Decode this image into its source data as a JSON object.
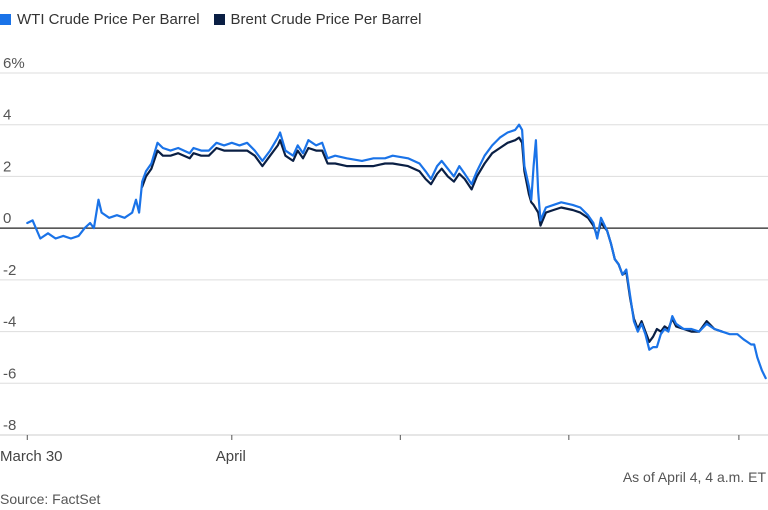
{
  "chart_data": {
    "type": "line",
    "ylim": [
      -8,
      6
    ],
    "yticks": [
      6,
      4,
      2,
      0,
      -2,
      -4,
      -6,
      -8
    ],
    "ytick_labels": [
      "6%",
      "4",
      "2",
      "0",
      "-2",
      "-4",
      "-6",
      "-8"
    ],
    "xlim": [
      0,
      100
    ],
    "xticks": [
      {
        "x": 3.3,
        "label": "March 30"
      },
      {
        "x": 30.0,
        "label": "April"
      },
      {
        "x": 52.0,
        "label": ""
      },
      {
        "x": 74.0,
        "label": ""
      },
      {
        "x": 96.2,
        "label": ""
      }
    ],
    "grid": true,
    "legend_position": "top-left",
    "series": [
      {
        "name": "WTI Crude Price Per Barrel",
        "color": "#1a73e8",
        "points": [
          [
            3.3,
            0.2
          ],
          [
            4.0,
            0.3
          ],
          [
            5.0,
            -0.4
          ],
          [
            6.0,
            -0.2
          ],
          [
            7.0,
            -0.4
          ],
          [
            8.0,
            -0.3
          ],
          [
            9.0,
            -0.4
          ],
          [
            10.0,
            -0.3
          ],
          [
            10.8,
            0.0
          ],
          [
            11.5,
            0.2
          ],
          [
            12.0,
            0.0
          ],
          [
            12.6,
            1.1
          ],
          [
            13.0,
            0.6
          ],
          [
            14.0,
            0.4
          ],
          [
            15.0,
            0.5
          ],
          [
            16.0,
            0.4
          ],
          [
            17.0,
            0.6
          ],
          [
            17.5,
            1.1
          ],
          [
            17.9,
            0.6
          ],
          [
            18.3,
            1.8
          ],
          [
            18.8,
            2.2
          ],
          [
            19.5,
            2.5
          ],
          [
            20.3,
            3.3
          ],
          [
            21.0,
            3.1
          ],
          [
            22.0,
            3.0
          ],
          [
            23.0,
            3.1
          ],
          [
            24.5,
            2.9
          ],
          [
            25.0,
            3.1
          ],
          [
            26.0,
            3.0
          ],
          [
            27.0,
            3.0
          ],
          [
            28.0,
            3.3
          ],
          [
            29.0,
            3.2
          ],
          [
            30.0,
            3.3
          ],
          [
            31.0,
            3.2
          ],
          [
            32.0,
            3.3
          ],
          [
            33.0,
            3.0
          ],
          [
            34.0,
            2.6
          ],
          [
            35.0,
            3.0
          ],
          [
            36.0,
            3.5
          ],
          [
            36.3,
            3.7
          ],
          [
            37.0,
            3.0
          ],
          [
            38.0,
            2.8
          ],
          [
            38.6,
            3.2
          ],
          [
            39.3,
            2.9
          ],
          [
            40.0,
            3.4
          ],
          [
            41.0,
            3.2
          ],
          [
            41.8,
            3.3
          ],
          [
            42.5,
            2.7
          ],
          [
            43.5,
            2.8
          ],
          [
            45.0,
            2.7
          ],
          [
            47.0,
            2.6
          ],
          [
            48.5,
            2.7
          ],
          [
            50.0,
            2.7
          ],
          [
            51.0,
            2.8
          ],
          [
            53.0,
            2.7
          ],
          [
            54.5,
            2.5
          ],
          [
            55.3,
            2.2
          ],
          [
            56.0,
            1.9
          ],
          [
            56.8,
            2.4
          ],
          [
            57.4,
            2.6
          ],
          [
            58.2,
            2.3
          ],
          [
            59.0,
            2.0
          ],
          [
            59.7,
            2.4
          ],
          [
            60.4,
            2.1
          ],
          [
            61.3,
            1.7
          ],
          [
            62.0,
            2.2
          ],
          [
            63.0,
            2.8
          ],
          [
            64.0,
            3.2
          ],
          [
            65.0,
            3.5
          ],
          [
            66.0,
            3.7
          ],
          [
            67.0,
            3.8
          ],
          [
            67.5,
            4.0
          ],
          [
            67.9,
            3.8
          ],
          [
            68.2,
            2.4
          ],
          [
            68.8,
            1.6
          ],
          [
            69.1,
            1.1
          ],
          [
            69.4,
            2.4
          ],
          [
            69.7,
            3.4
          ],
          [
            70.0,
            1.4
          ],
          [
            70.3,
            0.3
          ],
          [
            71.0,
            0.8
          ],
          [
            72.0,
            0.9
          ],
          [
            73.0,
            1.0
          ],
          [
            74.5,
            0.9
          ],
          [
            75.5,
            0.8
          ],
          [
            76.5,
            0.5
          ],
          [
            77.2,
            0.2
          ],
          [
            77.7,
            -0.4
          ],
          [
            78.2,
            0.4
          ],
          [
            79.0,
            -0.1
          ],
          [
            79.5,
            -0.6
          ],
          [
            80.0,
            -1.2
          ],
          [
            80.5,
            -1.4
          ],
          [
            81.0,
            -1.8
          ],
          [
            81.5,
            -1.6
          ],
          [
            82.0,
            -2.6
          ],
          [
            82.5,
            -3.6
          ],
          [
            83.0,
            -4.0
          ],
          [
            83.5,
            -3.7
          ],
          [
            84.0,
            -4.1
          ],
          [
            84.5,
            -4.7
          ],
          [
            85.0,
            -4.6
          ],
          [
            85.5,
            -4.6
          ],
          [
            86.0,
            -4.1
          ],
          [
            86.5,
            -3.9
          ],
          [
            87.0,
            -4.0
          ],
          [
            87.5,
            -3.4
          ],
          [
            88.0,
            -3.7
          ],
          [
            89.0,
            -3.9
          ],
          [
            90.0,
            -3.9
          ],
          [
            91.0,
            -4.0
          ],
          [
            92.0,
            -3.7
          ],
          [
            93.0,
            -3.9
          ],
          [
            94.0,
            -4.0
          ],
          [
            95.0,
            -4.1
          ],
          [
            96.0,
            -4.1
          ],
          [
            96.8,
            -4.3
          ],
          [
            97.3,
            -4.4
          ],
          [
            97.8,
            -4.5
          ],
          [
            98.2,
            -4.5
          ],
          [
            98.6,
            -5.0
          ],
          [
            99.2,
            -5.5
          ],
          [
            99.7,
            -5.8
          ]
        ]
      },
      {
        "name": "Brent Crude Price Per Barrel",
        "color": "#0a1f44",
        "points": [
          [
            18.3,
            1.6
          ],
          [
            18.8,
            2.0
          ],
          [
            19.5,
            2.3
          ],
          [
            20.3,
            3.0
          ],
          [
            21.0,
            2.8
          ],
          [
            22.0,
            2.8
          ],
          [
            23.0,
            2.9
          ],
          [
            24.5,
            2.7
          ],
          [
            25.0,
            2.9
          ],
          [
            26.0,
            2.8
          ],
          [
            27.0,
            2.8
          ],
          [
            28.0,
            3.1
          ],
          [
            29.0,
            3.0
          ],
          [
            30.0,
            3.0
          ],
          [
            31.0,
            3.0
          ],
          [
            32.0,
            3.0
          ],
          [
            33.0,
            2.8
          ],
          [
            34.0,
            2.4
          ],
          [
            35.0,
            2.8
          ],
          [
            36.0,
            3.2
          ],
          [
            36.3,
            3.4
          ],
          [
            37.0,
            2.8
          ],
          [
            38.0,
            2.6
          ],
          [
            38.6,
            3.0
          ],
          [
            39.3,
            2.7
          ],
          [
            40.0,
            3.1
          ],
          [
            41.0,
            3.0
          ],
          [
            41.8,
            3.0
          ],
          [
            42.5,
            2.5
          ],
          [
            43.5,
            2.5
          ],
          [
            45.0,
            2.4
          ],
          [
            47.0,
            2.4
          ],
          [
            48.5,
            2.4
          ],
          [
            50.0,
            2.5
          ],
          [
            51.0,
            2.5
          ],
          [
            53.0,
            2.4
          ],
          [
            54.5,
            2.2
          ],
          [
            55.3,
            1.9
          ],
          [
            56.0,
            1.7
          ],
          [
            56.8,
            2.1
          ],
          [
            57.4,
            2.3
          ],
          [
            58.2,
            2.0
          ],
          [
            59.0,
            1.8
          ],
          [
            59.7,
            2.1
          ],
          [
            60.4,
            1.9
          ],
          [
            61.3,
            1.5
          ],
          [
            62.0,
            2.0
          ],
          [
            63.0,
            2.5
          ],
          [
            64.0,
            2.9
          ],
          [
            65.0,
            3.1
          ],
          [
            66.0,
            3.3
          ],
          [
            67.0,
            3.4
          ],
          [
            67.5,
            3.5
          ],
          [
            67.9,
            3.3
          ],
          [
            68.2,
            2.2
          ],
          [
            68.8,
            1.3
          ],
          [
            69.1,
            1.0
          ],
          [
            69.4,
            0.9
          ],
          [
            70.0,
            0.6
          ],
          [
            70.3,
            0.1
          ],
          [
            71.0,
            0.6
          ],
          [
            72.0,
            0.7
          ],
          [
            73.0,
            0.8
          ],
          [
            74.5,
            0.7
          ],
          [
            75.5,
            0.6
          ],
          [
            76.5,
            0.4
          ],
          [
            77.2,
            0.1
          ],
          [
            77.7,
            -0.3
          ],
          [
            78.2,
            0.2
          ],
          [
            79.0,
            -0.1
          ],
          [
            79.5,
            -0.6
          ],
          [
            80.0,
            -1.2
          ],
          [
            80.5,
            -1.4
          ],
          [
            81.0,
            -1.8
          ],
          [
            81.5,
            -1.7
          ],
          [
            82.0,
            -2.7
          ],
          [
            82.5,
            -3.5
          ],
          [
            83.0,
            -3.9
          ],
          [
            83.5,
            -3.6
          ],
          [
            84.0,
            -4.0
          ],
          [
            84.5,
            -4.4
          ],
          [
            85.0,
            -4.2
          ],
          [
            85.5,
            -3.9
          ],
          [
            86.0,
            -4.0
          ],
          [
            86.5,
            -3.8
          ],
          [
            87.0,
            -3.9
          ],
          [
            87.5,
            -3.5
          ],
          [
            88.0,
            -3.8
          ],
          [
            89.0,
            -3.9
          ],
          [
            90.0,
            -4.0
          ],
          [
            91.0,
            -4.0
          ],
          [
            92.0,
            -3.6
          ],
          [
            93.0,
            -3.9
          ],
          [
            94.0,
            -4.0
          ]
        ]
      }
    ]
  },
  "note": "As of April 4, 4 a.m. ET",
  "source": "Source: FactSet"
}
